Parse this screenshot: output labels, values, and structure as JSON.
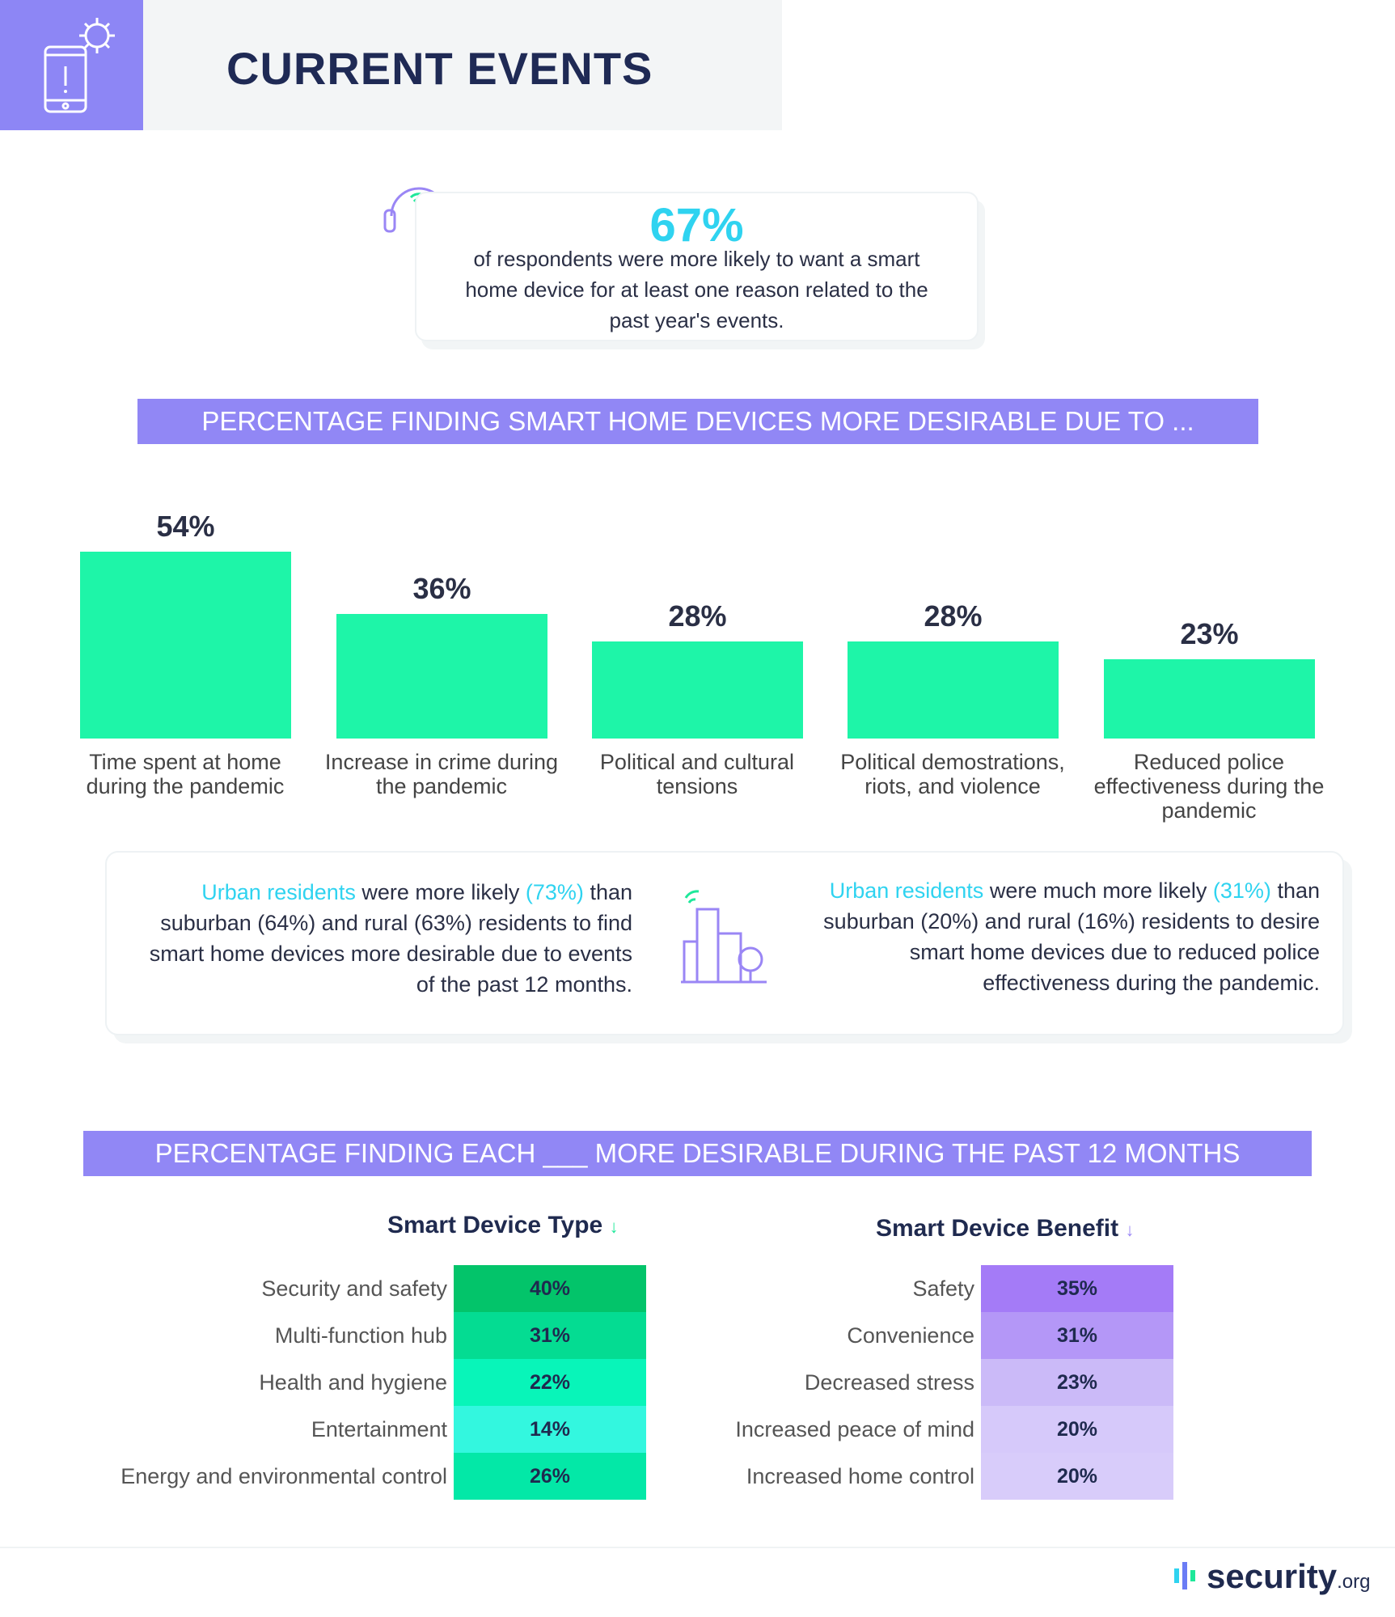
{
  "header": {
    "title": "CURRENT EVENTS",
    "icon": "phone-alert-virus-icon"
  },
  "callout": {
    "value": "67%",
    "text": "of respondents were more likely to want a smart home device for at least one reason related to the past year's events.",
    "icon": "headset-wifi-icon"
  },
  "banner1": "PERCENTAGE FINDING SMART HOME DEVICES MORE DESIRABLE DUE TO ...",
  "chart_data": {
    "type": "bar",
    "categories": [
      "Time spent at home during the pandemic",
      "Increase in crime during the pandemic",
      "Political and cultural tensions",
      "Political demostrations, riots, and violence",
      "Reduced police effectiveness during the pandemic"
    ],
    "values": [
      54,
      36,
      28,
      28,
      23
    ],
    "value_labels": [
      "54%",
      "36%",
      "28%",
      "28%",
      "23%"
    ],
    "color": "#1ef5a8"
  },
  "urban": {
    "left": {
      "highlight": "Urban residents",
      "t1": " were more likely ",
      "pct": "(73%)",
      "t2": " than suburban (64%) and rural (63%) residents to find smart home devices more desirable due to events of the past 12 months."
    },
    "right": {
      "highlight": "Urban residents",
      "t1": " were much more likely ",
      "pct": "(31%)",
      "t2": " than suburban (20%) and rural (16%) residents to desire smart home devices due to reduced police effectiveness  during the pandemic."
    },
    "icon": "city-buildings-icon"
  },
  "banner2": "PERCENTAGE FINDING EACH ___ MORE DESIRABLE DURING THE PAST 12 MONTHS",
  "tables": [
    {
      "title": "Smart Device Type",
      "arrow": "↓",
      "arrow_color": "#1ee89a",
      "rows": [
        {
          "label": "Security and safety",
          "value": "40%",
          "color": "#03c46a"
        },
        {
          "label": "Multi-function hub",
          "value": "31%",
          "color": "#04dc92"
        },
        {
          "label": "Health and hygiene",
          "value": "22%",
          "color": "#08f5b9"
        },
        {
          "label": "Entertainment",
          "value": "14%",
          "color": "#33f7df"
        },
        {
          "label": "Energy and environmental control",
          "value": "26%",
          "color": "#03e8a7"
        }
      ]
    },
    {
      "title": "Smart Device Benefit",
      "arrow": "↓",
      "arrow_color": "#9a86f5",
      "rows": [
        {
          "label": "Safety",
          "value": "35%",
          "color": "#a47bf7"
        },
        {
          "label": "Convenience",
          "value": "31%",
          "color": "#b497f7"
        },
        {
          "label": "Decreased stress",
          "value": "23%",
          "color": "#cbbaf8"
        },
        {
          "label": "Increased peace of mind",
          "value": "20%",
          "color": "#d6c9fa"
        },
        {
          "label": "Increased home control",
          "value": "20%",
          "color": "#d8ccfa"
        }
      ]
    }
  ],
  "footer": {
    "logo": "security",
    "logo_suffix": ".org"
  }
}
